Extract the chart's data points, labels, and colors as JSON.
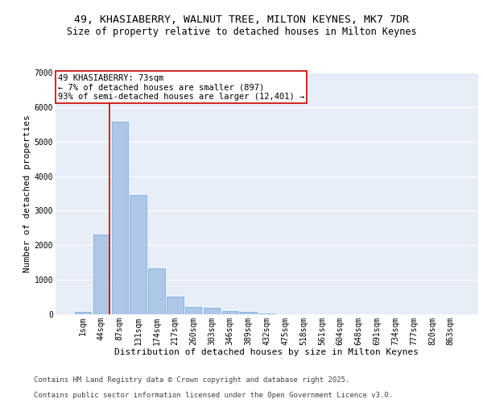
{
  "title": "49, KHASIABERRY, WALNUT TREE, MILTON KEYNES, MK7 7DR",
  "subtitle": "Size of property relative to detached houses in Milton Keynes",
  "xlabel": "Distribution of detached houses by size in Milton Keynes",
  "ylabel": "Number of detached properties",
  "categories": [
    "1sqm",
    "44sqm",
    "87sqm",
    "131sqm",
    "174sqm",
    "217sqm",
    "260sqm",
    "303sqm",
    "346sqm",
    "389sqm",
    "432sqm",
    "475sqm",
    "518sqm",
    "561sqm",
    "604sqm",
    "648sqm",
    "691sqm",
    "734sqm",
    "777sqm",
    "820sqm",
    "863sqm"
  ],
  "values": [
    75,
    2300,
    5580,
    3450,
    1320,
    520,
    215,
    185,
    95,
    60,
    30,
    5,
    0,
    0,
    0,
    0,
    0,
    0,
    0,
    0,
    0
  ],
  "bar_color": "#aec6e8",
  "bar_edge_color": "#6aaad4",
  "ylim": [
    0,
    7000
  ],
  "yticks": [
    0,
    1000,
    2000,
    3000,
    4000,
    5000,
    6000,
    7000
  ],
  "vline_x": 1.42,
  "vline_color": "#cc0000",
  "annotation_text": "49 KHASIABERRY: 73sqm\n← 7% of detached houses are smaller (897)\n93% of semi-detached houses are larger (12,401) →",
  "annotation_box_color": "#ffffff",
  "annotation_box_edge": "#cc0000",
  "footer_line1": "Contains HM Land Registry data © Crown copyright and database right 2025.",
  "footer_line2": "Contains public sector information licensed under the Open Government Licence v3.0.",
  "bg_color": "#e8eef8",
  "fig_bg_color": "#ffffff",
  "grid_color": "#ffffff",
  "title_fontsize": 9.5,
  "subtitle_fontsize": 8.5,
  "axis_label_fontsize": 8,
  "tick_fontsize": 7,
  "annotation_fontsize": 7.5,
  "footer_fontsize": 6.5
}
